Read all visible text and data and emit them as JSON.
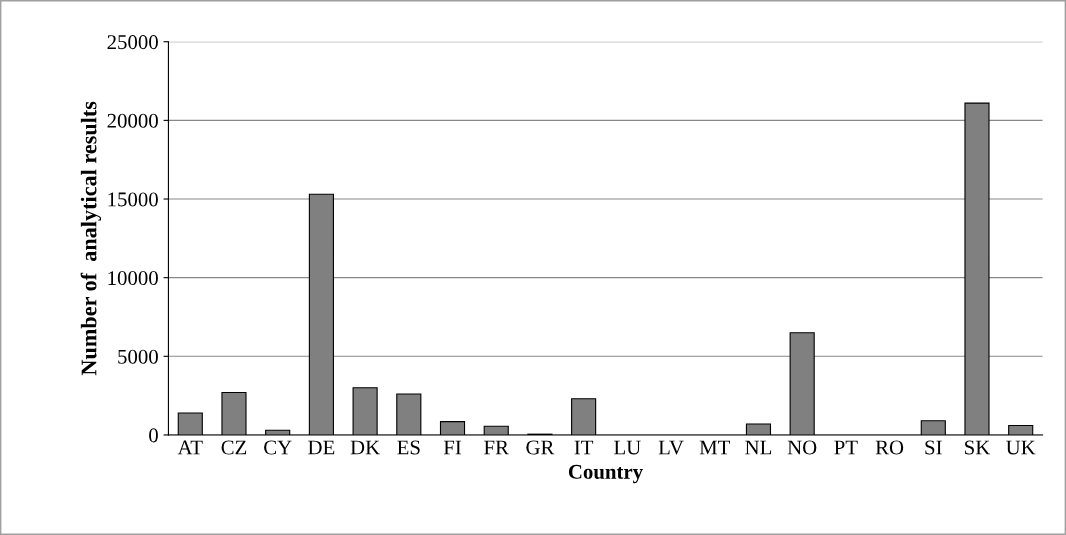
{
  "chart_data": {
    "type": "bar",
    "xlabel": "Country",
    "ylabel": "Number of  analytical results",
    "categories": [
      "AT",
      "CZ",
      "CY",
      "DE",
      "DK",
      "ES",
      "FI",
      "FR",
      "GR",
      "IT",
      "LU",
      "LV",
      "MT",
      "NL",
      "NO",
      "PT",
      "RO",
      "SI",
      "SK",
      "UK"
    ],
    "values": [
      1400,
      2700,
      300,
      15300,
      3000,
      2600,
      850,
      550,
      50,
      2300,
      null,
      null,
      null,
      700,
      6500,
      null,
      null,
      900,
      21100,
      600
    ],
    "color": "#808080",
    "ylim": [
      0,
      25000
    ],
    "yticks": [
      0,
      5000,
      10000,
      15000,
      20000,
      25000
    ],
    "grid": "y"
  }
}
